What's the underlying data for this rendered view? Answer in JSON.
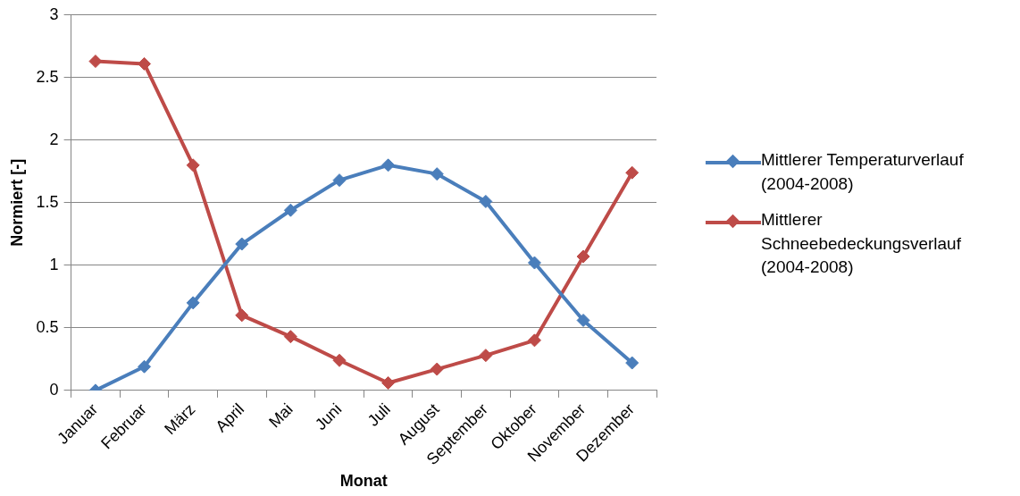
{
  "chart_data": {
    "type": "line",
    "xlabel": "Monat",
    "ylabel": "Normiert [-]",
    "categories": [
      "Januar",
      "Februar",
      "März",
      "April",
      "Mai",
      "Juni",
      "Juli",
      "August",
      "September",
      "Oktober",
      "November",
      "Dezember"
    ],
    "series": [
      {
        "name": "Mittlerer Temperaturverlauf (2004-2008)",
        "color": "#4a7ebb",
        "values": [
          0,
          0.19,
          0.7,
          1.17,
          1.44,
          1.68,
          1.8,
          1.73,
          1.51,
          1.02,
          0.56,
          0.22
        ]
      },
      {
        "name": "Mittlerer Schneebedeckungsverlauf (2004-2008)",
        "color": "#be4b48",
        "values": [
          2.63,
          2.61,
          1.8,
          0.6,
          0.43,
          0.24,
          0.06,
          0.17,
          0.28,
          0.4,
          1.07,
          1.74
        ]
      }
    ],
    "ylim": [
      0,
      3
    ],
    "yticks": [
      0,
      0.5,
      1,
      1.5,
      2,
      2.5,
      3
    ],
    "grid": "y",
    "legend": "right",
    "marker": "diamond",
    "line_style": "solid"
  }
}
